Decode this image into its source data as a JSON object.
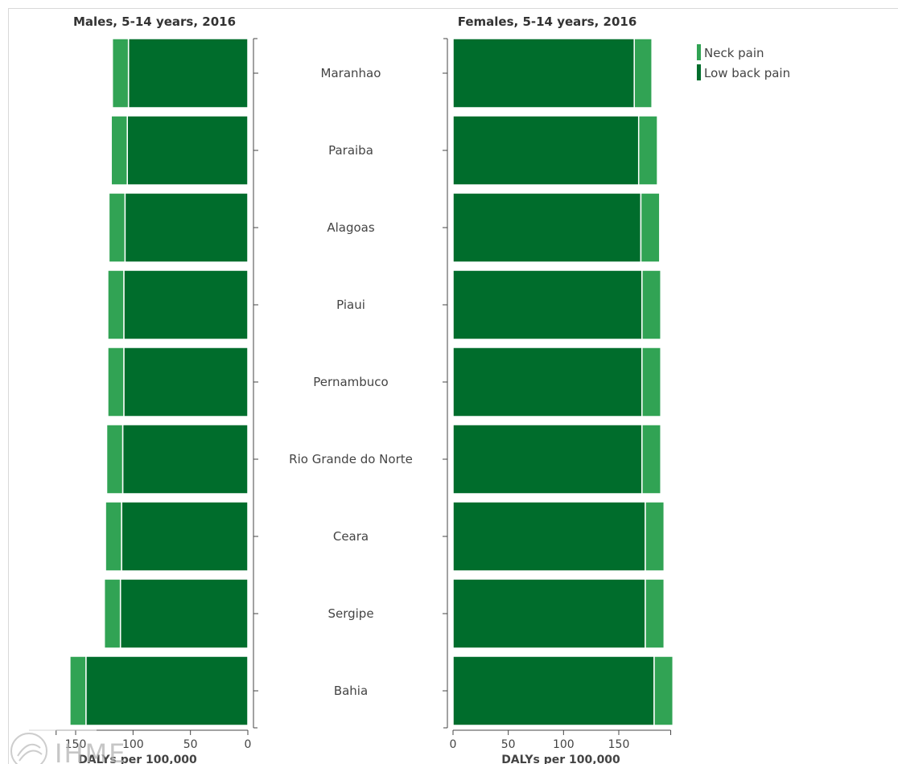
{
  "chart_data": [
    {
      "type": "bar",
      "orientation": "horizontal",
      "stacked": true,
      "direction": "right-to-left",
      "title": "Males, 5-14 years, 2016",
      "xlabel": "DALYs per 100,000",
      "xlim": [
        0,
        167
      ],
      "xticks": [
        150,
        100,
        50,
        0
      ],
      "categories": [
        "Maranhao",
        "Paraiba",
        "Alagoas",
        "Piaui",
        "Pernambuco",
        "Rio Grande do Norte",
        "Ceara",
        "Sergipe",
        "Bahia"
      ],
      "series": [
        {
          "name": "Low back pain",
          "values": [
            104,
            105,
            107,
            108,
            108,
            109,
            110,
            111,
            141
          ]
        },
        {
          "name": "Neck pain",
          "values": [
            14,
            14,
            14,
            14,
            14,
            14,
            14,
            14,
            14
          ]
        }
      ]
    },
    {
      "type": "bar",
      "orientation": "horizontal",
      "stacked": true,
      "direction": "left-to-right",
      "title": "Females, 5-14 years, 2016",
      "xlabel": "DALYs per 100,000",
      "xlim": [
        0,
        197
      ],
      "xticks": [
        0,
        50,
        100,
        150
      ],
      "categories": [
        "Maranhao",
        "Paraiba",
        "Alagoas",
        "Piaui",
        "Pernambuco",
        "Rio Grande do Norte",
        "Ceara",
        "Sergipe",
        "Bahia"
      ],
      "series": [
        {
          "name": "Low back pain",
          "values": [
            164,
            168,
            170,
            171,
            171,
            171,
            174,
            174,
            182
          ]
        },
        {
          "name": "Neck pain",
          "values": [
            16,
            17,
            17,
            17,
            17,
            17,
            17,
            17,
            17
          ]
        }
      ]
    }
  ],
  "legend": {
    "placement": "top-right",
    "items": [
      {
        "label": "Neck pain",
        "color": "#31a354"
      },
      {
        "label": "Low back pain",
        "color": "#006d2c"
      }
    ]
  },
  "watermark": {
    "text": "IHME"
  }
}
